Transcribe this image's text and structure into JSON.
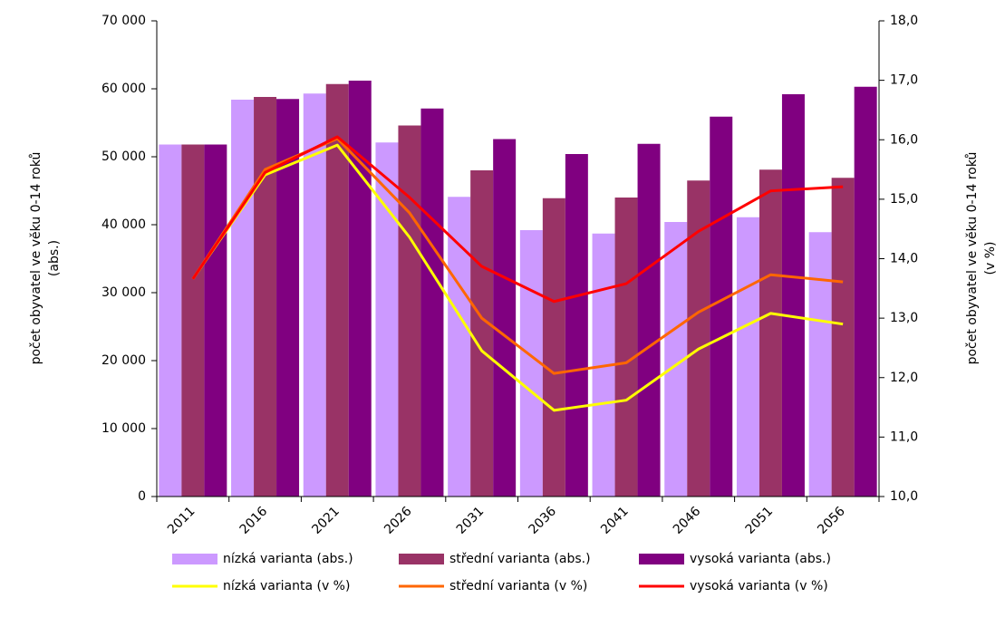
{
  "chart_data": {
    "type": "bar_line",
    "ylabel": [
      "počet obyvatel ve věku 0-14 roků",
      "(abs.)"
    ],
    "y2label": [
      "počet obyvatel ve věku 0-14 roků",
      "(v %)"
    ],
    "categories": [
      "2011",
      "2016",
      "2021",
      "2026",
      "2031",
      "2036",
      "2041",
      "2046",
      "2051",
      "2056"
    ],
    "ylim": [
      0,
      70000
    ],
    "yticks": [
      0,
      {
        "value": 10000,
        "label": "10 000"
      },
      {
        "value": 20000,
        "label": "20 000"
      },
      {
        "value": 30000,
        "label": "30 000"
      },
      {
        "value": 40000,
        "label": "40 000"
      },
      {
        "value": 50000,
        "label": "50 000"
      },
      {
        "value": 60000,
        "label": "60 000"
      },
      {
        "value": 70000,
        "label": "70 000"
      }
    ],
    "y2lim": [
      10,
      18
    ],
    "y2ticks": [
      {
        "value": 10,
        "label": "10,0"
      },
      {
        "value": 11,
        "label": "11,0"
      },
      {
        "value": 12,
        "label": "12,0"
      },
      {
        "value": 13,
        "label": "13,0"
      },
      {
        "value": 14,
        "label": "14,0"
      },
      {
        "value": 15,
        "label": "15,0"
      },
      {
        "value": 16,
        "label": "16,0"
      },
      {
        "value": 17,
        "label": "17,0"
      },
      {
        "value": 18,
        "label": "18,0"
      }
    ],
    "series": [
      {
        "name": "nízká varianta (abs.)",
        "type": "bar",
        "color": "#cc99ff",
        "values": [
          51800,
          58400,
          59300,
          52100,
          44100,
          39200,
          38700,
          40400,
          41100,
          38900
        ]
      },
      {
        "name": "střední varianta (abs.)",
        "type": "bar",
        "color": "#993366",
        "values": [
          51800,
          58800,
          60700,
          54600,
          48000,
          43900,
          44000,
          46500,
          48100,
          46900
        ]
      },
      {
        "name": "vysoká varianta (abs.)",
        "type": "bar",
        "color": "#800080",
        "values": [
          51800,
          58500,
          61200,
          57100,
          52600,
          50400,
          51900,
          55900,
          59200,
          60300
        ]
      },
      {
        "name": "nízká varianta (v %)",
        "type": "line",
        "axis": "y2",
        "color": "#ffff00",
        "values": [
          13.66,
          15.41,
          15.91,
          14.36,
          12.45,
          11.45,
          11.62,
          12.48,
          13.08,
          12.9
        ]
      },
      {
        "name": "střední varianta (v %)",
        "type": "line",
        "axis": "y2",
        "color": "#ff6600",
        "values": [
          13.66,
          15.5,
          16.02,
          14.77,
          13.0,
          12.07,
          12.25,
          13.1,
          13.73,
          13.61
        ]
      },
      {
        "name": "vysoká varianta (v %)",
        "type": "line",
        "axis": "y2",
        "color": "#ff0000",
        "values": [
          13.66,
          15.45,
          16.05,
          15.03,
          13.87,
          13.28,
          13.58,
          14.46,
          15.14,
          15.21
        ]
      }
    ]
  }
}
